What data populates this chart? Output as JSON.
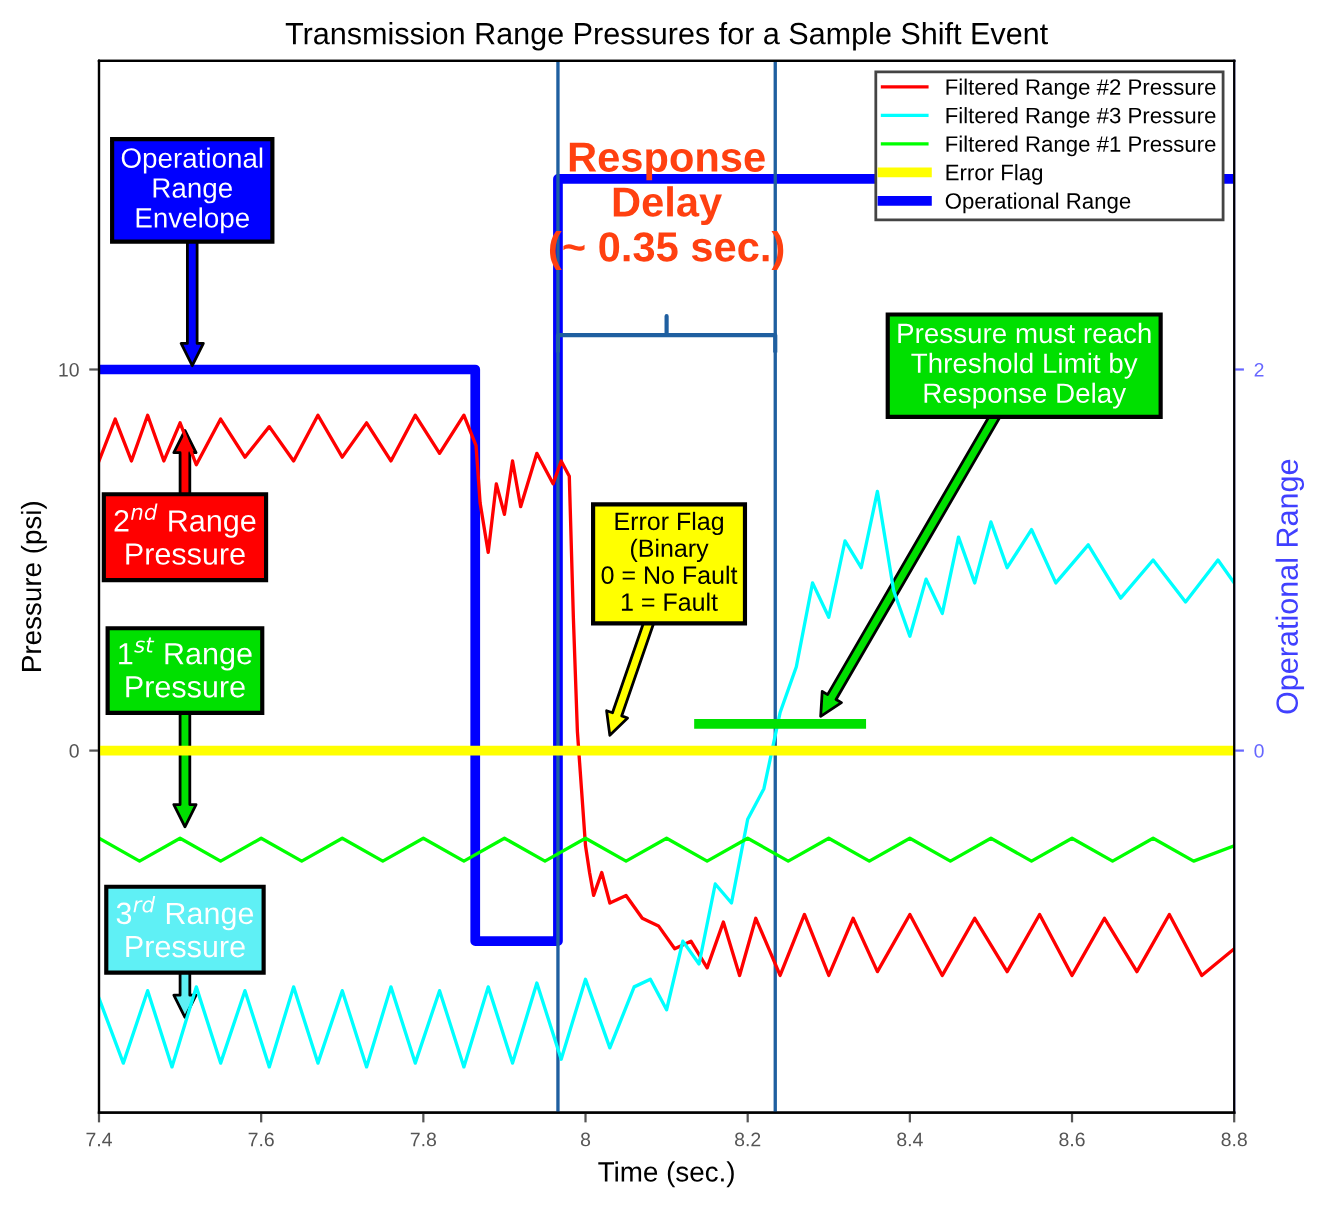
{
  "chart_data": {
    "type": "line",
    "title": "Transmission Range Pressures for a Sample Shift Event",
    "xlabel": "Time (sec.)",
    "ylabel": "Pressure (psi)",
    "y2label": "Operational Range",
    "xlim": [
      7.4,
      8.8
    ],
    "xticks": [
      7.4,
      7.6,
      7.8,
      8,
      8.2,
      8.4,
      8.6,
      8.8
    ],
    "ylim": [
      -9.5,
      18.1
    ],
    "yticks": [
      0,
      10
    ],
    "y2lim": [
      -1.9,
      3.62
    ],
    "y2ticks": [
      0,
      2
    ],
    "grid": false,
    "legend": "top right",
    "marker": "none",
    "line_style": "solid",
    "series": [
      {
        "name": "Filtered Range #2 Pressure",
        "color": "#ff0000",
        "x": [
          7.4,
          7.42,
          7.44,
          7.46,
          7.48,
          7.5,
          7.52,
          7.55,
          7.58,
          7.61,
          7.64,
          7.67,
          7.7,
          7.73,
          7.76,
          7.79,
          7.82,
          7.85,
          7.865,
          7.87,
          7.88,
          7.89,
          7.9,
          7.91,
          7.92,
          7.94,
          7.96,
          7.97,
          7.98,
          7.985,
          7.99,
          7.995,
          8.0,
          8.005,
          8.01,
          8.02,
          8.03,
          8.05,
          8.07,
          8.09,
          8.11,
          8.13,
          8.15,
          8.17,
          8.19,
          8.21,
          8.24,
          8.27,
          8.3,
          8.33,
          8.36,
          8.4,
          8.44,
          8.48,
          8.52,
          8.56,
          8.6,
          8.64,
          8.68,
          8.72,
          8.76,
          8.8
        ],
        "values": [
          7.6,
          8.7,
          7.6,
          8.8,
          7.6,
          8.6,
          7.5,
          8.7,
          7.7,
          8.5,
          7.6,
          8.8,
          7.7,
          8.6,
          7.6,
          8.8,
          7.8,
          8.8,
          8.0,
          6.5,
          5.2,
          7.0,
          6.2,
          7.6,
          6.4,
          7.8,
          7.0,
          7.6,
          7.2,
          3.5,
          0.5,
          -1.0,
          -2.5,
          -3.2,
          -3.8,
          -3.2,
          -4.0,
          -3.8,
          -4.4,
          -4.6,
          -5.2,
          -5.0,
          -5.7,
          -4.5,
          -5.9,
          -4.4,
          -5.9,
          -4.3,
          -5.9,
          -4.4,
          -5.8,
          -4.3,
          -5.9,
          -4.4,
          -5.8,
          -4.3,
          -5.9,
          -4.4,
          -5.8,
          -4.3,
          -5.9,
          -5.2
        ]
      },
      {
        "name": "Filtered Range #3 Pressure",
        "color": "#00ffff",
        "x": [
          7.4,
          7.43,
          7.46,
          7.49,
          7.52,
          7.55,
          7.58,
          7.61,
          7.64,
          7.67,
          7.7,
          7.73,
          7.76,
          7.79,
          7.82,
          7.85,
          7.88,
          7.91,
          7.94,
          7.97,
          8.0,
          8.03,
          8.06,
          8.08,
          8.1,
          8.12,
          8.14,
          8.16,
          8.18,
          8.2,
          8.22,
          8.24,
          8.26,
          8.28,
          8.3,
          8.32,
          8.34,
          8.36,
          8.38,
          8.4,
          8.42,
          8.44,
          8.46,
          8.48,
          8.5,
          8.52,
          8.55,
          8.58,
          8.62,
          8.66,
          8.7,
          8.74,
          8.78,
          8.8
        ],
        "values": [
          -6.5,
          -8.2,
          -6.3,
          -8.3,
          -6.2,
          -8.2,
          -6.3,
          -8.3,
          -6.2,
          -8.2,
          -6.3,
          -8.3,
          -6.2,
          -8.2,
          -6.3,
          -8.3,
          -6.2,
          -8.2,
          -6.1,
          -8.1,
          -6.0,
          -7.8,
          -6.2,
          -6.0,
          -6.8,
          -5.0,
          -5.6,
          -3.5,
          -4.0,
          -1.8,
          -1.0,
          1.0,
          2.2,
          4.4,
          3.5,
          5.5,
          4.8,
          6.8,
          4.2,
          3.0,
          4.5,
          3.6,
          5.6,
          4.4,
          6.0,
          4.8,
          5.8,
          4.4,
          5.4,
          4.0,
          5.0,
          3.9,
          5.0,
          4.4
        ]
      },
      {
        "name": "Filtered Range #1 Pressure",
        "color": "#00ff00",
        "x": [
          7.4,
          7.45,
          7.5,
          7.55,
          7.6,
          7.65,
          7.7,
          7.75,
          7.8,
          7.85,
          7.9,
          7.95,
          8.0,
          8.05,
          8.1,
          8.15,
          8.2,
          8.25,
          8.3,
          8.35,
          8.4,
          8.45,
          8.5,
          8.55,
          8.6,
          8.65,
          8.7,
          8.75,
          8.8
        ],
        "values": [
          -2.3,
          -2.9,
          -2.3,
          -2.9,
          -2.3,
          -2.9,
          -2.3,
          -2.9,
          -2.3,
          -2.9,
          -2.3,
          -2.9,
          -2.3,
          -2.9,
          -2.3,
          -2.9,
          -2.3,
          -2.9,
          -2.3,
          -2.9,
          -2.3,
          -2.9,
          -2.3,
          -2.9,
          -2.3,
          -2.9,
          -2.3,
          -2.9,
          -2.5
        ]
      },
      {
        "name": "Error Flag",
        "color": "#ffff00",
        "x": [
          7.4,
          8.8
        ],
        "values": [
          0,
          0
        ]
      },
      {
        "name": "Operational Range",
        "color": "#0000ff",
        "axis": "y2",
        "type": "step",
        "x": [
          7.4,
          7.864,
          7.966,
          8.8
        ],
        "values": [
          2,
          -1,
          3,
          3
        ]
      },
      {
        "color": "#00e000",
        "x": [
          8.14,
          8.34
        ],
        "values": [
          0.7,
          0.7
        ]
      }
    ],
    "ref_lines": [
      {
        "axis": "x",
        "value": 7.966,
        "color": "#1f5fa0"
      },
      {
        "axis": "x",
        "value": 8.234,
        "color": "#1f5fa0"
      }
    ],
    "annotations": [
      "Operational\nRange\nEnvelope",
      "2$^{nd}$ Range\nPressure",
      "1$^{st}$ Range\nPressure",
      "3$^{rd}$ Range\nPressure",
      "Error Flag\n(Binary\n0 = No Fault\n1 = Fault",
      "Pressure must reach\nThreshold Limit by\nResponse Delay",
      "Response\nDelay\n(~ 0.35 sec.)"
    ]
  }
}
